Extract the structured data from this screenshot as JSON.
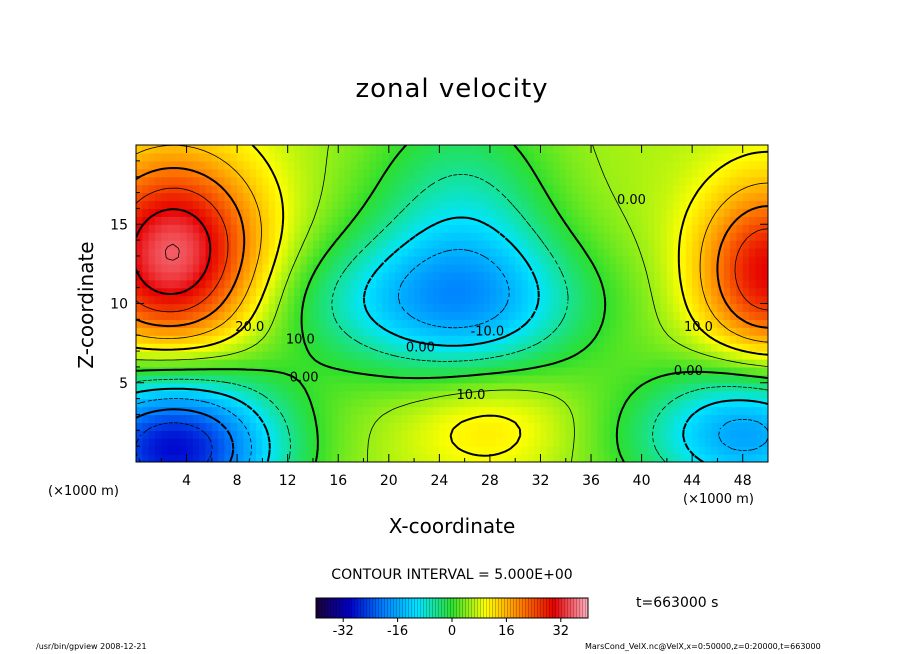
{
  "chart_data": {
    "type": "heatmap",
    "title": "zonal velocity",
    "xlabel": "X-coordinate",
    "ylabel": "Z-coordinate",
    "x_unit_label": "(×1000 m)",
    "y_unit_label": "(×1000 m)",
    "xlim": [
      0,
      50
    ],
    "ylim": [
      0,
      20
    ],
    "x_ticks": [
      4,
      8,
      12,
      16,
      20,
      24,
      28,
      32,
      36,
      40,
      44,
      48
    ],
    "y_ticks": [
      5,
      10,
      15
    ],
    "grid": false,
    "colorscale": {
      "range": [
        -40,
        40
      ],
      "ticks": [
        -32,
        -16,
        0,
        16,
        32
      ],
      "colors": [
        "#1a0033",
        "#0000cc",
        "#0080ff",
        "#00e5ff",
        "#2ddf2d",
        "#ffff00",
        "#ff8000",
        "#e60000",
        "#ffb0c0"
      ]
    },
    "contour_interval_text": "CONTOUR INTERVAL = 5.000E+00",
    "contour_labels": [
      {
        "text": "20.0",
        "x": 9,
        "z": 8.5
      },
      {
        "text": "10.0",
        "x": 13,
        "z": 7.7
      },
      {
        "text": "0.00",
        "x": 13.3,
        "z": 5.3
      },
      {
        "text": "0.00",
        "x": 22.5,
        "z": 7.2
      },
      {
        "text": "-10.0",
        "x": 27.8,
        "z": 8.2
      },
      {
        "text": "10.0",
        "x": 26.5,
        "z": 4.2
      },
      {
        "text": "0.00",
        "x": 39.2,
        "z": 16.5
      },
      {
        "text": "10.0",
        "x": 44.5,
        "z": 8.5
      },
      {
        "text": "0.00",
        "x": 43.7,
        "z": 5.7
      }
    ],
    "features": [
      {
        "name": "westward jet core",
        "x": 3,
        "z": 13,
        "value": 35
      },
      {
        "name": "eastern boundary maximum",
        "x": 49,
        "z": 12,
        "value": 25
      },
      {
        "name": "upper mid-domain minimum",
        "x": 27,
        "z": 13,
        "value": -12
      },
      {
        "name": "near-surface minimum",
        "x": 3,
        "z": 1,
        "value": -30
      },
      {
        "name": "near-surface minimum east",
        "x": 49,
        "z": 2,
        "value": -15
      }
    ]
  },
  "time_label": "t=663000 s",
  "footer_left": "/usr/bin/gpview   2008-12-21",
  "footer_right": "MarsCond_VelX.nc@VelX,x=0:50000,z=0:20000,t=663000"
}
